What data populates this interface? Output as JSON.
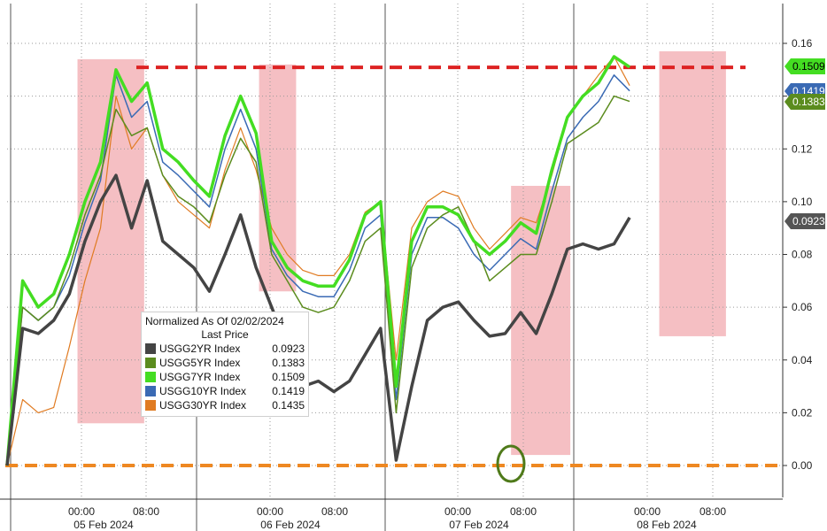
{
  "chart_data": {
    "type": "line",
    "title": "",
    "legend": {
      "title": "Normalized As Of 02/02/2024",
      "subtitle": "Last Price",
      "placement": "center-left"
    },
    "grid": true,
    "ylim": [
      -0.01,
      0.17
    ],
    "y_ticks": [
      0.0,
      0.02,
      0.04,
      0.06,
      0.08,
      0.1,
      0.12,
      0.14,
      0.16
    ],
    "y_tick_labels": [
      "0.00",
      "0.02",
      "0.04",
      "0.06",
      "0.08",
      "0.10",
      "0.12",
      "0.14",
      "0.16"
    ],
    "x_time_labels": [
      "00:00",
      "08:00",
      "00:00",
      "08:00",
      "00:00",
      "08:00",
      "00:00",
      "08:00"
    ],
    "x_day_labels": [
      "05 Feb 2024",
      "06 Feb 2024",
      "07 Feb 2024",
      "08 Feb 2024"
    ],
    "x": [
      0,
      0.1,
      0.2,
      0.3,
      0.4,
      0.5,
      0.6,
      0.7,
      0.8,
      0.9,
      1.0,
      1.1,
      1.2,
      1.3,
      1.4,
      1.5,
      1.6,
      1.7,
      1.8,
      1.9,
      2.0,
      2.1,
      2.2,
      2.3,
      2.4,
      2.5,
      2.6,
      2.7,
      2.8,
      2.9,
      3.0,
      3.1,
      3.2,
      3.3,
      3.4,
      3.5,
      3.6,
      3.7,
      3.8,
      3.9,
      4.0
    ],
    "series": [
      {
        "name": "USGG2YR Index",
        "last": "0.0923",
        "color": "#444444",
        "values": [
          0,
          0.052,
          0.05,
          0.055,
          0.065,
          0.085,
          0.1,
          0.11,
          0.09,
          0.108,
          0.085,
          0.08,
          0.075,
          0.066,
          0.08,
          0.095,
          0.075,
          0.06,
          0.045,
          0.03,
          0.032,
          0.028,
          0.032,
          0.042,
          0.052,
          0.002,
          0.03,
          0.055,
          0.06,
          0.062,
          0.055,
          0.049,
          0.05,
          0.058,
          0.05,
          0.065,
          0.082,
          0.084,
          0.082,
          0.084,
          0.094
        ]
      },
      {
        "name": "USGG5YR Index",
        "last": "0.1383",
        "color": "#5b8c1e",
        "values": [
          0,
          0.06,
          0.055,
          0.06,
          0.075,
          0.095,
          0.11,
          0.135,
          0.125,
          0.128,
          0.11,
          0.102,
          0.098,
          0.092,
          0.11,
          0.124,
          0.115,
          0.08,
          0.07,
          0.06,
          0.058,
          0.06,
          0.07,
          0.085,
          0.09,
          0.02,
          0.075,
          0.09,
          0.095,
          0.098,
          0.085,
          0.07,
          0.075,
          0.08,
          0.08,
          0.1,
          0.122,
          0.126,
          0.13,
          0.14,
          0.138
        ]
      },
      {
        "name": "USGG7YR Index",
        "last": "0.1509",
        "color": "#44dd22",
        "values": [
          0,
          0.07,
          0.06,
          0.065,
          0.08,
          0.1,
          0.115,
          0.15,
          0.138,
          0.145,
          0.12,
          0.115,
          0.108,
          0.102,
          0.125,
          0.14,
          0.126,
          0.085,
          0.075,
          0.07,
          0.068,
          0.068,
          0.078,
          0.095,
          0.1,
          0.03,
          0.085,
          0.098,
          0.098,
          0.095,
          0.085,
          0.08,
          0.085,
          0.092,
          0.088,
          0.112,
          0.132,
          0.14,
          0.145,
          0.155,
          0.151
        ]
      },
      {
        "name": "USGG10YR Index",
        "last": "0.1419",
        "color": "#3a6ab4",
        "values": [
          0,
          0.06,
          0.055,
          0.06,
          0.072,
          0.092,
          0.108,
          0.148,
          0.132,
          0.138,
          0.115,
          0.11,
          0.104,
          0.098,
          0.12,
          0.135,
          0.12,
          0.082,
          0.072,
          0.066,
          0.064,
          0.064,
          0.074,
          0.09,
          0.095,
          0.025,
          0.08,
          0.094,
          0.094,
          0.09,
          0.08,
          0.074,
          0.08,
          0.086,
          0.082,
          0.104,
          0.124,
          0.132,
          0.138,
          0.148,
          0.142
        ]
      },
      {
        "name": "USGG30YR Index",
        "last": "0.1435",
        "color": "#e07b22",
        "values": [
          0,
          0.025,
          0.02,
          0.022,
          0.045,
          0.07,
          0.09,
          0.14,
          0.12,
          0.128,
          0.11,
          0.1,
          0.095,
          0.09,
          0.112,
          0.128,
          0.112,
          0.09,
          0.08,
          0.074,
          0.072,
          0.072,
          0.08,
          0.096,
          0.1,
          0.04,
          0.09,
          0.1,
          0.104,
          0.102,
          0.09,
          0.082,
          0.088,
          0.094,
          0.092,
          0.11,
          0.132,
          0.14,
          0.148,
          0.155,
          0.144
        ]
      }
    ],
    "reference_lines": [
      {
        "value": 0.1509,
        "color": "#dd2222",
        "style": "dashed"
      },
      {
        "value": 0.0,
        "color": "#ee8822",
        "style": "dashed"
      }
    ],
    "shaded_regions": [
      {
        "x": [
          0.95,
          1.85
        ],
        "y": [
          0.016,
          0.154
        ],
        "color": "#f4b8bc"
      },
      {
        "x": [
          3.4,
          3.9
        ],
        "y": [
          0.066,
          0.152
        ],
        "color": "#f4b8bc"
      },
      {
        "x": [
          6.8,
          7.6
        ],
        "y": [
          0.004,
          0.106
        ],
        "color": "#f4b8bc"
      },
      {
        "x": [
          8.8,
          9.7
        ],
        "y": [
          0.049,
          0.157
        ],
        "color": "#f4b8bc"
      }
    ],
    "end_labels": [
      {
        "text": "0.1509",
        "value": 0.1509,
        "bg": "#44dd22",
        "fg": "#000000"
      },
      {
        "text": "0.1419",
        "value": 0.1419,
        "bg": "#3a6ab4",
        "fg": "#ffffff"
      },
      {
        "text": "0.1383",
        "value": 0.1383,
        "bg": "#5b8c1e",
        "fg": "#ffffff"
      },
      {
        "text": "0.0923",
        "value": 0.0923,
        "bg": "#555555",
        "fg": "#ffffff"
      }
    ],
    "annotations": [
      {
        "type": "circle",
        "at_value": 0.002,
        "color": "#4f7a1a"
      }
    ]
  }
}
